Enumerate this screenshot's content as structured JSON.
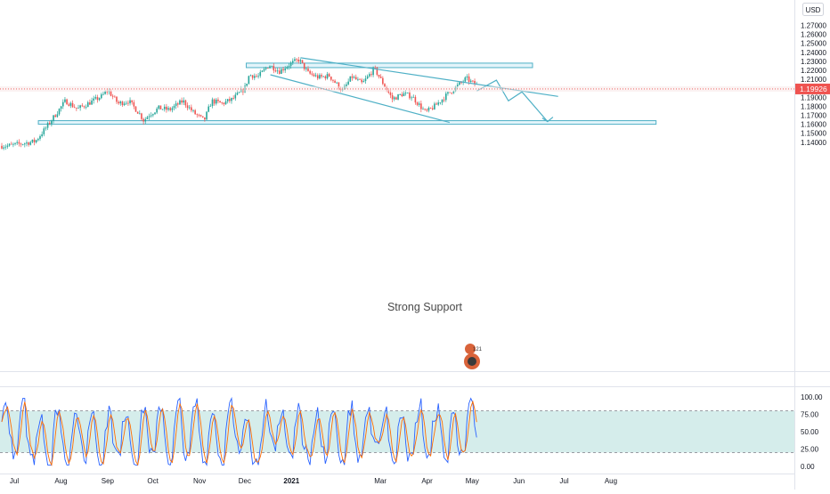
{
  "currency_label": "USD",
  "current_price_label": "1.19926",
  "annotation_text": "Strong Support",
  "logo_badge_text": "121",
  "colors": {
    "up": "#26a69a",
    "down": "#ef5350",
    "drawing": "#4fb0c6",
    "zone_fill": "#e3f4fa",
    "price_tag": "#ef5350",
    "stoch_k": "#2962ff",
    "stoch_d": "#ff6d00",
    "stoch_band": "#b2dfdb"
  },
  "chart_data": [
    {
      "type": "candlestick",
      "title": "",
      "price_axis": {
        "ticks": [
          "1.27000",
          "1.26000",
          "1.25000",
          "1.24000",
          "1.23000",
          "1.22000",
          "1.21000",
          "1.19000",
          "1.18000",
          "1.17000",
          "1.16000",
          "1.15000",
          "1.14000"
        ],
        "range": [
          1.133,
          1.278
        ]
      },
      "time_axis": {
        "ticks": [
          "Jul",
          "Aug",
          "Sep",
          "Oct",
          "Nov",
          "Dec",
          "2021",
          "Mar",
          "Apr",
          "May",
          "Jun",
          "Jul",
          "Aug"
        ]
      },
      "current_price": 1.19926,
      "price_path": [
        {
          "t": "2020-06-27",
          "p": 1.136
        },
        {
          "t": "2020-07-08",
          "p": 1.139
        },
        {
          "t": "2020-07-15",
          "p": 1.141
        },
        {
          "t": "2020-07-22",
          "p": 1.156
        },
        {
          "t": "2020-07-28",
          "p": 1.17
        },
        {
          "t": "2020-08-04",
          "p": 1.186
        },
        {
          "t": "2020-08-12",
          "p": 1.177
        },
        {
          "t": "2020-08-20",
          "p": 1.184
        },
        {
          "t": "2020-08-28",
          "p": 1.191
        },
        {
          "t": "2020-09-01",
          "p": 1.198
        },
        {
          "t": "2020-09-08",
          "p": 1.183
        },
        {
          "t": "2020-09-15",
          "p": 1.186
        },
        {
          "t": "2020-09-22",
          "p": 1.172
        },
        {
          "t": "2020-09-25",
          "p": 1.164
        },
        {
          "t": "2020-09-28",
          "p": 1.17
        },
        {
          "t": "2020-10-05",
          "p": 1.178
        },
        {
          "t": "2020-10-12",
          "p": 1.176
        },
        {
          "t": "2020-10-21",
          "p": 1.186
        },
        {
          "t": "2020-10-28",
          "p": 1.173
        },
        {
          "t": "2020-11-04",
          "p": 1.164
        },
        {
          "t": "2020-11-09",
          "p": 1.186
        },
        {
          "t": "2020-11-16",
          "p": 1.183
        },
        {
          "t": "2020-11-23",
          "p": 1.188
        },
        {
          "t": "2020-12-01",
          "p": 1.2
        },
        {
          "t": "2020-12-04",
          "p": 1.215
        },
        {
          "t": "2020-12-10",
          "p": 1.213
        },
        {
          "t": "2020-12-17",
          "p": 1.226
        },
        {
          "t": "2020-12-24",
          "p": 1.219
        },
        {
          "t": "2020-12-31",
          "p": 1.227
        },
        {
          "t": "2021-01-06",
          "p": 1.232
        },
        {
          "t": "2021-01-12",
          "p": 1.217
        },
        {
          "t": "2021-01-19",
          "p": 1.212
        },
        {
          "t": "2021-01-26",
          "p": 1.214
        },
        {
          "t": "2021-02-04",
          "p": 1.197
        },
        {
          "t": "2021-02-10",
          "p": 1.213
        },
        {
          "t": "2021-02-17",
          "p": 1.205
        },
        {
          "t": "2021-02-25",
          "p": 1.222
        },
        {
          "t": "2021-03-03",
          "p": 1.205
        },
        {
          "t": "2021-03-09",
          "p": 1.188
        },
        {
          "t": "2021-03-16",
          "p": 1.194
        },
        {
          "t": "2021-03-22",
          "p": 1.191
        },
        {
          "t": "2021-03-31",
          "p": 1.173
        },
        {
          "t": "2021-04-06",
          "p": 1.18
        },
        {
          "t": "2021-04-13",
          "p": 1.191
        },
        {
          "t": "2021-04-20",
          "p": 1.201
        },
        {
          "t": "2021-04-27",
          "p": 1.211
        },
        {
          "t": "2021-05-01",
          "p": 1.206
        },
        {
          "t": "2021-05-04",
          "p": 1.204
        }
      ],
      "drawings": {
        "resistance_zone": {
          "from": "2020-12-02",
          "to": "2021-06-10",
          "low": 1.223,
          "high": 1.228
        },
        "support_zone": {
          "from": "2020-07-17",
          "to": "2021-08-31",
          "low": 1.16,
          "high": 1.164
        },
        "descending_trendline": [
          {
            "t": "2021-01-07",
            "p": 1.234
          },
          {
            "t": "2021-06-27",
            "p": 1.191
          }
        ],
        "channel_lower_line": [
          {
            "t": "2020-12-18",
            "p": 1.215
          },
          {
            "t": "2021-04-16",
            "p": 1.162
          }
        ],
        "projected_path": [
          {
            "t": "2021-05-04",
            "p": 1.197
          },
          {
            "t": "2021-05-17",
            "p": 1.209
          },
          {
            "t": "2021-05-25",
            "p": 1.186
          },
          {
            "t": "2021-06-03",
            "p": 1.196
          },
          {
            "t": "2021-06-20",
            "p": 1.163
          }
        ]
      }
    },
    {
      "type": "line",
      "title": "",
      "y_ticks": [
        "100.00",
        "75.00",
        "50.00",
        "25.00",
        "0.00"
      ],
      "ylim": [
        0,
        100
      ],
      "overbought": 80,
      "oversold": 20
    }
  ]
}
